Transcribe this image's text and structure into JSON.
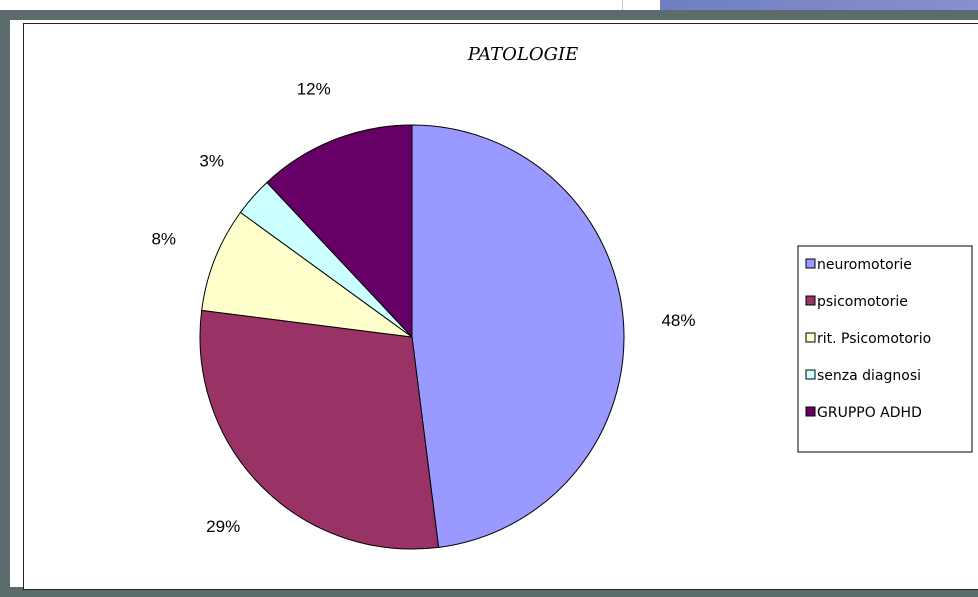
{
  "chart_data": {
    "type": "pie",
    "title": "PATOLOGIE",
    "categories": [
      "neuromotorie",
      "psicomotorie",
      "rit. Psicomotorio",
      "senza diagnosi",
      "GRUPPO ADHD"
    ],
    "values": [
      48,
      29,
      8,
      3,
      12
    ],
    "labels": [
      "48%",
      "29%",
      "8%",
      "3%",
      "12%"
    ],
    "colors": [
      "#9999ff",
      "#993366",
      "#ffffcc",
      "#ccffff",
      "#660066"
    ],
    "legend_position": "right"
  }
}
